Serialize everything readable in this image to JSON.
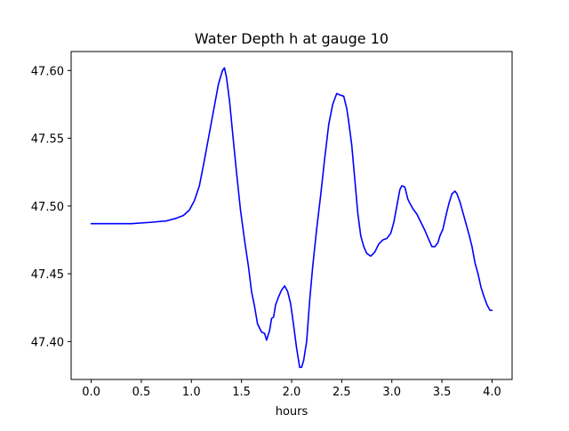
{
  "chart_data": {
    "type": "line",
    "title": "Water Depth h at gauge 10",
    "xlabel": "hours",
    "ylabel": "",
    "xlim": [
      -0.2,
      4.2
    ],
    "ylim": [
      47.372,
      47.614
    ],
    "xticks": [
      0.0,
      0.5,
      1.0,
      1.5,
      2.0,
      2.5,
      3.0,
      3.5,
      4.0
    ],
    "xtick_labels": [
      "0.0",
      "0.5",
      "1.0",
      "1.5",
      "2.0",
      "2.5",
      "3.0",
      "3.5",
      "4.0"
    ],
    "yticks": [
      47.4,
      47.45,
      47.5,
      47.55,
      47.6
    ],
    "ytick_labels": [
      "47.40",
      "47.45",
      "47.50",
      "47.55",
      "47.60"
    ],
    "grid": false,
    "series": [
      {
        "color": "#0000ff",
        "x": [
          0.0,
          0.2,
          0.4,
          0.6,
          0.75,
          0.85,
          0.92,
          0.98,
          1.03,
          1.08,
          1.12,
          1.17,
          1.22,
          1.27,
          1.31,
          1.33,
          1.35,
          1.38,
          1.41,
          1.45,
          1.49,
          1.53,
          1.57,
          1.6,
          1.63,
          1.66,
          1.7,
          1.73,
          1.75,
          1.78,
          1.8,
          1.82,
          1.84,
          1.87,
          1.9,
          1.93,
          1.96,
          1.99,
          2.02,
          2.05,
          2.08,
          2.1,
          2.12,
          2.15,
          2.18,
          2.21,
          2.25,
          2.29,
          2.33,
          2.37,
          2.41,
          2.45,
          2.48,
          2.52,
          2.55,
          2.57,
          2.6,
          2.63,
          2.66,
          2.69,
          2.72,
          2.75,
          2.79,
          2.83,
          2.87,
          2.91,
          2.95,
          2.99,
          3.02,
          3.05,
          3.08,
          3.1,
          3.13,
          3.16,
          3.18,
          3.21,
          3.25,
          3.29,
          3.33,
          3.37,
          3.4,
          3.43,
          3.46,
          3.48,
          3.51,
          3.54,
          3.57,
          3.6,
          3.63,
          3.65,
          3.68,
          3.71,
          3.74,
          3.77,
          3.8,
          3.83,
          3.86,
          3.89,
          3.92,
          3.95,
          3.98,
          4.0
        ],
        "y": [
          47.487,
          47.487,
          47.487,
          47.488,
          47.489,
          47.491,
          47.493,
          47.497,
          47.504,
          47.515,
          47.53,
          47.55,
          47.57,
          47.59,
          47.6,
          47.602,
          47.595,
          47.578,
          47.555,
          47.525,
          47.497,
          47.475,
          47.455,
          47.437,
          47.426,
          47.413,
          47.407,
          47.406,
          47.401,
          47.408,
          47.417,
          47.418,
          47.427,
          47.433,
          47.438,
          47.441,
          47.437,
          47.428,
          47.412,
          47.395,
          47.381,
          47.381,
          47.386,
          47.4,
          47.43,
          47.455,
          47.483,
          47.508,
          47.535,
          47.56,
          47.575,
          47.583,
          47.582,
          47.581,
          47.572,
          47.562,
          47.545,
          47.52,
          47.495,
          47.478,
          47.47,
          47.465,
          47.463,
          47.466,
          47.472,
          47.475,
          47.476,
          47.48,
          47.488,
          47.5,
          47.512,
          47.515,
          47.514,
          47.505,
          47.502,
          47.498,
          47.494,
          47.488,
          47.482,
          47.475,
          47.47,
          47.47,
          47.473,
          47.478,
          47.483,
          47.493,
          47.502,
          47.509,
          47.511,
          47.509,
          47.503,
          47.495,
          47.487,
          47.479,
          47.47,
          47.458,
          47.45,
          47.44,
          47.433,
          47.427,
          47.423,
          47.423
        ]
      }
    ]
  }
}
